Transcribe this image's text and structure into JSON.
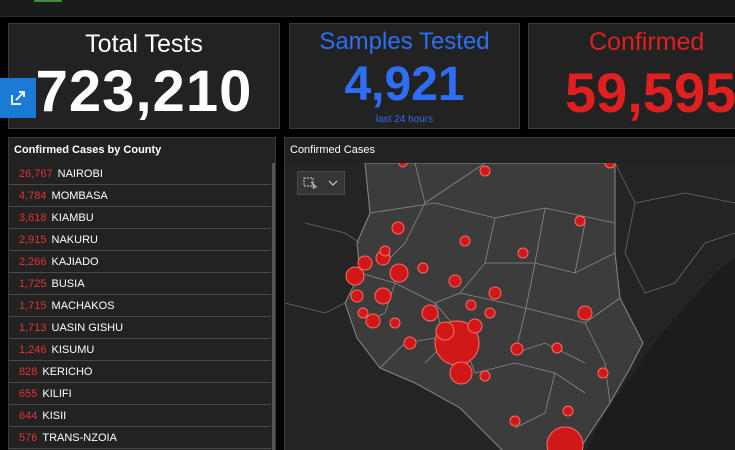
{
  "stats": {
    "total_tests": {
      "title": "Total Tests",
      "value": "723,210"
    },
    "samples_tested": {
      "title": "Samples Tested",
      "value": "4,921",
      "subtitle": "last 24 hours"
    },
    "confirmed": {
      "title": "Confirmed",
      "value": "59,595"
    }
  },
  "colors": {
    "background": "#000000",
    "card": "#222222",
    "blue_accent": "#2e6ef5",
    "red_accent": "#e02020",
    "share_button": "#1b7ad4"
  },
  "county_panel": {
    "title": "Confirmed Cases by County",
    "rows": [
      {
        "count": "26,767",
        "county": "NAIROBI"
      },
      {
        "count": "4,784",
        "county": "MOMBASA"
      },
      {
        "count": "3,618",
        "county": "KIAMBU"
      },
      {
        "count": "2,915",
        "county": "NAKURU"
      },
      {
        "count": "2,266",
        "county": "KAJIADO"
      },
      {
        "count": "1,725",
        "county": "BUSIA"
      },
      {
        "count": "1,715",
        "county": "MACHAKOS"
      },
      {
        "count": "1,713",
        "county": "UASIN GISHU"
      },
      {
        "count": "1,246",
        "county": "KISUMU"
      },
      {
        "count": "828",
        "county": "KERICHO"
      },
      {
        "count": "655",
        "county": "KILIFI"
      },
      {
        "count": "644",
        "county": "KISII"
      },
      {
        "count": "576",
        "county": "TRANS-NZOIA"
      }
    ]
  },
  "map_panel": {
    "title": "Confirmed Cases",
    "tool_icons": [
      "select-icon",
      "chevron-down-icon"
    ]
  },
  "icons": {
    "share": "share-icon"
  }
}
